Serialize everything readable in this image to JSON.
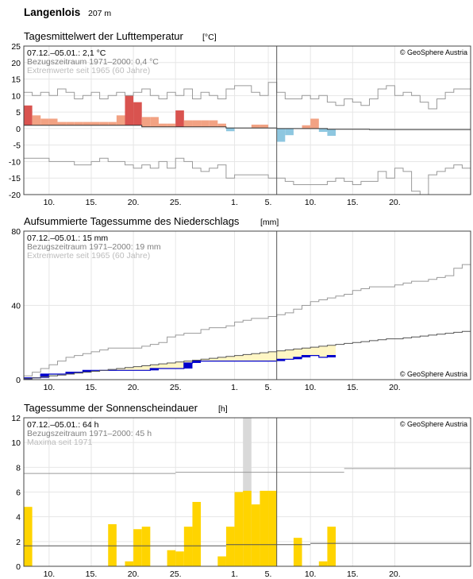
{
  "station": {
    "name": "Langenlois",
    "elevation": "207 m"
  },
  "x_tick_labels": [
    "10.",
    "15.",
    "20.",
    "25.",
    "1.",
    "5.",
    "10.",
    "15.",
    "20."
  ],
  "copyright": "© GeoSphere Austria",
  "colors": {
    "warm_strong": "#d9534f",
    "warm": "#f2a283",
    "cold": "#8ec7e0",
    "precip_current": "#0000cc",
    "precip_fill": "#fff6c4",
    "precip_deficit": "#dff0d8",
    "sunshine": "#ffd400",
    "grid": "#e6e6e6",
    "norm": "#707070",
    "extreme": "#9a9a9a",
    "today_band": "#d9d9d9"
  },
  "chart_data": [
    {
      "type": "bar",
      "title": "Tagesmittelwert der Lufttemperatur",
      "unit": "[°C]",
      "ylim": [
        -20,
        25
      ],
      "y_ticks": [
        25,
        20,
        15,
        10,
        5,
        0,
        -5,
        -10,
        -15,
        -20
      ],
      "legend": [
        "07.12.–05.01.: 2,1 °C",
        "Bezugszeitraum 1971–2000: 0,4 °C",
        "Extremwerte seit 1965 (60 Jahre)"
      ],
      "anomaly": [
        6,
        3,
        2,
        2,
        1,
        1,
        1,
        1,
        1,
        1,
        1,
        3,
        9,
        7,
        3,
        3,
        1,
        1,
        5,
        2,
        2,
        2,
        2,
        1,
        -1,
        0,
        0,
        1,
        1,
        0,
        -4,
        -2,
        0,
        1,
        3,
        -1,
        -2
      ],
      "max_extreme": [
        11,
        10,
        11,
        10,
        12,
        11,
        9,
        10,
        11,
        9,
        10,
        11,
        10,
        11,
        12,
        10,
        9,
        11,
        10,
        12,
        9,
        11,
        10,
        9,
        12,
        13,
        13,
        11,
        10,
        14,
        11,
        9,
        9,
        10,
        9,
        10,
        8,
        7,
        9,
        8,
        7,
        9,
        12,
        13,
        10,
        11,
        10,
        8,
        6,
        9,
        11,
        12,
        12
      ],
      "min_extreme": [
        -9,
        -9,
        -9,
        -10,
        -10,
        -10,
        -11,
        -11,
        -10,
        -9,
        -10,
        -10,
        -11,
        -12,
        -11,
        -12,
        -10,
        -12,
        -9,
        -10,
        -12,
        -13,
        -12,
        -11,
        -15,
        -14,
        -14,
        -14,
        -14,
        -15,
        -15,
        -16,
        -17,
        -17,
        -17,
        -17,
        -16,
        -15,
        -16,
        -17,
        -16,
        -16,
        -13,
        -15,
        -12,
        -13,
        -19,
        -20,
        -14,
        -13,
        -12,
        -11,
        -12
      ],
      "norm": [
        1,
        1,
        1,
        1,
        1,
        1,
        1,
        1,
        1,
        1,
        1,
        1,
        1,
        1,
        0.5,
        0.5,
        0.5,
        0.5,
        0.5,
        0.5,
        0.5,
        0.5,
        0.5,
        0.5,
        0.2,
        0.2,
        0.2,
        0.2,
        0.2,
        0.2,
        0,
        0,
        0,
        0,
        0,
        0,
        -0.2,
        -0.2,
        -0.2,
        -0.2,
        -0.2,
        -0.3,
        -0.3,
        -0.3,
        -0.3,
        -0.3,
        -0.3,
        -0.3,
        -0.3,
        -0.3,
        -0.3,
        -0.3,
        -0.3
      ]
    },
    {
      "type": "area",
      "title": "Aufsummierte Tagessumme des Niederschlags",
      "unit": "[mm]",
      "ylim": [
        0,
        80
      ],
      "y_ticks": [
        80,
        40,
        0
      ],
      "legend": [
        "07.12.–05.01.: 15 mm",
        "Bezugszeitraum 1971–2000: 19 mm",
        "Extremwerte seit 1965 (60 Jahre)"
      ],
      "cumulative": [
        1,
        1,
        3,
        3,
        3,
        4,
        4,
        5,
        5,
        5,
        5,
        5,
        5,
        5,
        5,
        6,
        6,
        6,
        6,
        9,
        10,
        10,
        10,
        10,
        10,
        10,
        10,
        10,
        10,
        10,
        11,
        11,
        12,
        13,
        13,
        12,
        13
      ],
      "norm": [
        0.5,
        1,
        1.5,
        2,
        2.5,
        3,
        3.5,
        4,
        4.5,
        5,
        5.5,
        6,
        6.5,
        7,
        7.5,
        8,
        8.5,
        9,
        9.5,
        10,
        10.5,
        11,
        11.5,
        12,
        12.5,
        13,
        13.5,
        14,
        14.5,
        15,
        15.5,
        16,
        16.5,
        17,
        17.5,
        18,
        18.5,
        19,
        19.5,
        20,
        20.5,
        21,
        21.5,
        22,
        22,
        22.5,
        23,
        23.5,
        24,
        24.5,
        25,
        25.5,
        26
      ],
      "max_extreme": [
        2,
        4,
        6,
        8,
        10,
        12,
        13,
        14,
        15,
        16,
        17,
        17,
        17,
        17,
        18,
        19,
        20,
        23,
        24,
        25,
        25,
        27,
        28,
        28,
        29,
        31,
        32,
        33,
        33,
        34,
        35,
        36,
        38,
        40,
        42,
        43,
        44,
        45,
        46,
        48,
        49,
        50,
        50,
        50,
        51,
        52,
        53,
        53,
        54,
        55,
        56,
        60,
        62,
        64,
        66,
        70,
        74,
        76,
        77
      ]
    },
    {
      "type": "bar",
      "title": "Tagessumme der Sonnenscheindauer",
      "unit": "[h]",
      "ylim": [
        0,
        12
      ],
      "y_ticks": [
        12,
        10,
        8,
        6,
        4,
        2,
        0
      ],
      "legend": [
        "07.12.–05.01.: 64 h",
        "Bezugszeitraum 1971–2000: 45 h",
        "Maxima seit 1971"
      ],
      "values": [
        4.8,
        0,
        0,
        0,
        0,
        0,
        0,
        0,
        0,
        0,
        3.4,
        0,
        0.4,
        3,
        3.2,
        0,
        0,
        1.3,
        1.2,
        3.2,
        5.2,
        0,
        0,
        0.8,
        3.2,
        6,
        6.1,
        5,
        6.1,
        6.1,
        0,
        0,
        2.3,
        0,
        0,
        0.4,
        3.2
      ],
      "norm_band": [
        {
          "from": 0,
          "to": 24,
          "value": 1.65
        },
        {
          "from": 24,
          "to": 34,
          "value": 1.75
        },
        {
          "from": 34,
          "to": 53,
          "value": 1.85
        }
      ],
      "max_line": [
        {
          "from": 0,
          "to": 18,
          "value": 7.5
        },
        {
          "from": 18,
          "to": 38,
          "value": 7.6
        },
        {
          "from": 38,
          "to": 53,
          "value": 7.9
        }
      ],
      "today_band": 7.9
    }
  ]
}
